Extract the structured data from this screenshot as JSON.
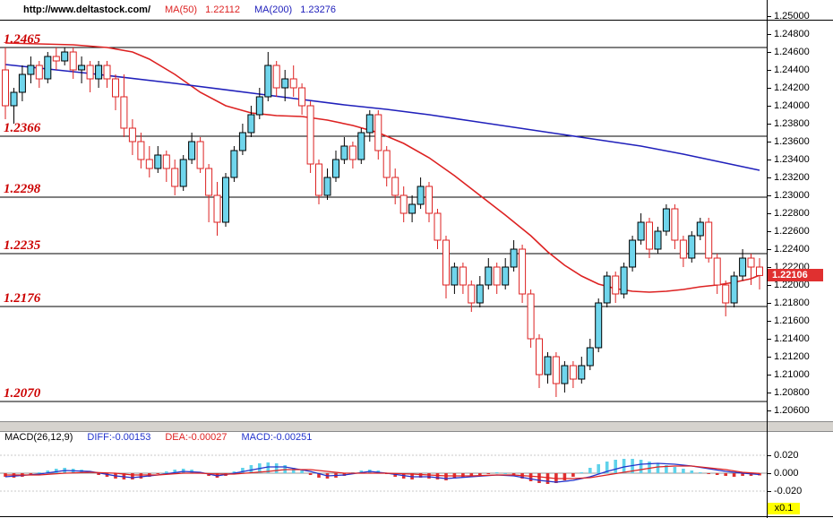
{
  "header": {
    "url": "http://www.deltastock.com/",
    "ma50_label": "MA(50)",
    "ma50_value": "1.22112",
    "ma200_label": "MA(200)",
    "ma200_value": "1.23276"
  },
  "macd_header": {
    "label": "MACD(26,12,9)",
    "diff": "DIFF:-0.00153",
    "dea": "DEA:-0.00027",
    "macd": "MACD:-0.00251",
    "scale_badge": "x0.1"
  },
  "price_badge": "1.22106",
  "colors": {
    "up_candle": "#6fd5ec",
    "down_candle": "#dd2222",
    "ma50": "#dd2222",
    "ma200": "#2020bb",
    "level_label": "#cc0000",
    "level_line": "#000000",
    "diff_line": "#2233cc",
    "dea_line": "#dd2222",
    "hist_pos": "#5fd2ea",
    "hist_neg": "#e03030",
    "price_badge_bg": "#e03030",
    "scale_badge_bg": "#ffff00"
  },
  "chart_data": [
    {
      "type": "candlestick",
      "title": "",
      "ylim": [
        1.2048,
        1.2496
      ],
      "y_axis": {
        "top": 1.25,
        "step": 0.002,
        "count": 23,
        "decimals": 5
      },
      "last_price": 1.22106,
      "levels": [
        {
          "label": "1.2465",
          "price": 1.2465
        },
        {
          "label": "1.2366",
          "price": 1.2366
        },
        {
          "label": "1.2298",
          "price": 1.2298
        },
        {
          "label": "1.2235",
          "price": 1.2235
        },
        {
          "label": "1.2176",
          "price": 1.2176
        },
        {
          "label": "1.2070",
          "price": 1.207
        }
      ],
      "overlays": [
        {
          "id": "ma50",
          "name": "MA(50)",
          "color": "#dd2222",
          "points": [
            [
              0,
              1.247
            ],
            [
              8,
              1.2468
            ],
            [
              12,
              1.2465
            ],
            [
              15,
              1.246
            ],
            [
              17,
              1.2452
            ],
            [
              20,
              1.2435
            ],
            [
              23,
              1.2415
            ],
            [
              26,
              1.24
            ],
            [
              29,
              1.2392
            ],
            [
              32,
              1.2389
            ],
            [
              35,
              1.2388
            ],
            [
              38,
              1.2384
            ],
            [
              41,
              1.2378
            ],
            [
              44,
              1.237
            ],
            [
              47,
              1.2358
            ],
            [
              50,
              1.2342
            ],
            [
              53,
              1.2322
            ],
            [
              56,
              1.23
            ],
            [
              59,
              1.2278
            ],
            [
              62,
              1.2255
            ],
            [
              64,
              1.2237
            ],
            [
              66,
              1.2222
            ],
            [
              68,
              1.221
            ],
            [
              70,
              1.2201
            ],
            [
              72,
              1.2196
            ],
            [
              74,
              1.2193
            ],
            [
              76,
              1.2192
            ],
            [
              78,
              1.2193
            ],
            [
              80,
              1.2195
            ],
            [
              82,
              1.2198
            ],
            [
              84,
              1.22
            ],
            [
              86,
              1.2203
            ],
            [
              88,
              1.2207
            ],
            [
              89,
              1.2211
            ]
          ]
        },
        {
          "id": "ma200",
          "name": "MA(200)",
          "color": "#2020bb",
          "points": [
            [
              0,
              1.2446
            ],
            [
              10,
              1.2436
            ],
            [
              20,
              1.2425
            ],
            [
              30,
              1.2413
            ],
            [
              40,
              1.2401
            ],
            [
              45,
              1.2396
            ],
            [
              50,
              1.239
            ],
            [
              55,
              1.2383
            ],
            [
              60,
              1.2376
            ],
            [
              65,
              1.2369
            ],
            [
              70,
              1.2362
            ],
            [
              75,
              1.2355
            ],
            [
              80,
              1.2346
            ],
            [
              85,
              1.2336
            ],
            [
              89,
              1.2328
            ]
          ]
        }
      ],
      "candles": [
        [
          1.244,
          1.2465,
          1.2385,
          1.24
        ],
        [
          1.24,
          1.242,
          1.238,
          1.2415
        ],
        [
          1.2415,
          1.2445,
          1.2405,
          1.2435
        ],
        [
          1.2435,
          1.2455,
          1.2425,
          1.2445
        ],
        [
          1.2445,
          1.245,
          1.242,
          1.243
        ],
        [
          1.243,
          1.246,
          1.2425,
          1.2455
        ],
        [
          1.2455,
          1.2465,
          1.244,
          1.245
        ],
        [
          1.245,
          1.2465,
          1.2445,
          1.246
        ],
        [
          1.246,
          1.2465,
          1.243,
          1.244
        ],
        [
          1.244,
          1.2455,
          1.2425,
          1.2445
        ],
        [
          1.2445,
          1.245,
          1.2415,
          1.243
        ],
        [
          1.243,
          1.245,
          1.242,
          1.2445
        ],
        [
          1.2445,
          1.245,
          1.242,
          1.243
        ],
        [
          1.243,
          1.2435,
          1.2395,
          1.241
        ],
        [
          1.241,
          1.2435,
          1.2365,
          1.2375
        ],
        [
          1.2375,
          1.2385,
          1.2345,
          1.236
        ],
        [
          1.236,
          1.237,
          1.233,
          1.234
        ],
        [
          1.234,
          1.2355,
          1.232,
          1.233
        ],
        [
          1.233,
          1.2355,
          1.2325,
          1.2345
        ],
        [
          1.2345,
          1.235,
          1.2315,
          1.233
        ],
        [
          1.233,
          1.234,
          1.23,
          1.231
        ],
        [
          1.231,
          1.2345,
          1.2305,
          1.234
        ],
        [
          1.234,
          1.237,
          1.2335,
          1.236
        ],
        [
          1.236,
          1.2365,
          1.2325,
          1.233
        ],
        [
          1.233,
          1.2335,
          1.227,
          1.23
        ],
        [
          1.23,
          1.2315,
          1.2255,
          1.227
        ],
        [
          1.227,
          1.2325,
          1.2265,
          1.232
        ],
        [
          1.232,
          1.2355,
          1.2315,
          1.235
        ],
        [
          1.235,
          1.238,
          1.2345,
          1.237
        ],
        [
          1.237,
          1.24,
          1.2365,
          1.239
        ],
        [
          1.239,
          1.242,
          1.2385,
          1.241
        ],
        [
          1.241,
          1.246,
          1.2405,
          1.2445
        ],
        [
          1.2445,
          1.245,
          1.241,
          1.242
        ],
        [
          1.242,
          1.244,
          1.2405,
          1.243
        ],
        [
          1.243,
          1.2445,
          1.241,
          1.242
        ],
        [
          1.242,
          1.2425,
          1.239,
          1.24
        ],
        [
          1.24,
          1.2405,
          1.2325,
          1.2335
        ],
        [
          1.2335,
          1.234,
          1.229,
          1.23
        ],
        [
          1.23,
          1.233,
          1.2295,
          1.232
        ],
        [
          1.232,
          1.235,
          1.2315,
          1.234
        ],
        [
          1.234,
          1.2365,
          1.2335,
          1.2355
        ],
        [
          1.2355,
          1.236,
          1.233,
          1.234
        ],
        [
          1.234,
          1.2375,
          1.2335,
          1.237
        ],
        [
          1.237,
          1.2395,
          1.236,
          1.239
        ],
        [
          1.239,
          1.2395,
          1.234,
          1.235
        ],
        [
          1.235,
          1.2355,
          1.231,
          1.232
        ],
        [
          1.232,
          1.233,
          1.229,
          1.23
        ],
        [
          1.23,
          1.231,
          1.227,
          1.228
        ],
        [
          1.228,
          1.23,
          1.227,
          1.229
        ],
        [
          1.229,
          1.232,
          1.2285,
          1.231
        ],
        [
          1.231,
          1.2315,
          1.227,
          1.228
        ],
        [
          1.228,
          1.2285,
          1.224,
          1.225
        ],
        [
          1.225,
          1.2255,
          1.2185,
          1.22
        ],
        [
          1.22,
          1.2225,
          1.219,
          1.222
        ],
        [
          1.222,
          1.2225,
          1.219,
          1.22
        ],
        [
          1.22,
          1.2205,
          1.217,
          1.218
        ],
        [
          1.218,
          1.221,
          1.2175,
          1.22
        ],
        [
          1.22,
          1.223,
          1.2195,
          1.222
        ],
        [
          1.222,
          1.2225,
          1.219,
          1.22
        ],
        [
          1.22,
          1.223,
          1.2195,
          1.222
        ],
        [
          1.222,
          1.225,
          1.2215,
          1.224
        ],
        [
          1.224,
          1.2245,
          1.218,
          1.219
        ],
        [
          1.219,
          1.2195,
          1.213,
          1.214
        ],
        [
          1.214,
          1.2145,
          1.2085,
          1.21
        ],
        [
          1.21,
          1.2125,
          1.209,
          1.212
        ],
        [
          1.212,
          1.2125,
          1.2075,
          1.209
        ],
        [
          1.209,
          1.2115,
          1.208,
          1.211
        ],
        [
          1.211,
          1.2115,
          1.2085,
          1.2095
        ],
        [
          1.2095,
          1.212,
          1.209,
          1.211
        ],
        [
          1.211,
          1.214,
          1.2105,
          1.213
        ],
        [
          1.213,
          1.2185,
          1.2125,
          1.218
        ],
        [
          1.218,
          1.2215,
          1.2175,
          1.221
        ],
        [
          1.221,
          1.2215,
          1.218,
          1.219
        ],
        [
          1.219,
          1.2225,
          1.2185,
          1.222
        ],
        [
          1.222,
          1.2255,
          1.2215,
          1.225
        ],
        [
          1.225,
          1.228,
          1.2245,
          1.227
        ],
        [
          1.227,
          1.2275,
          1.223,
          1.224
        ],
        [
          1.224,
          1.2265,
          1.2235,
          1.226
        ],
        [
          1.226,
          1.229,
          1.2255,
          1.2285
        ],
        [
          1.2285,
          1.229,
          1.224,
          1.225
        ],
        [
          1.225,
          1.2255,
          1.222,
          1.223
        ],
        [
          1.223,
          1.226,
          1.2225,
          1.2255
        ],
        [
          1.2255,
          1.2275,
          1.225,
          1.227
        ],
        [
          1.227,
          1.2275,
          1.2225,
          1.223
        ],
        [
          1.223,
          1.2235,
          1.219,
          1.22
        ],
        [
          1.22,
          1.2205,
          1.2165,
          1.218
        ],
        [
          1.218,
          1.2215,
          1.2175,
          1.221
        ],
        [
          1.221,
          1.224,
          1.2205,
          1.223
        ],
        [
          1.223,
          1.2235,
          1.22,
          1.222
        ],
        [
          1.222,
          1.223,
          1.2195,
          1.22106
        ]
      ]
    },
    {
      "type": "macd",
      "ylim": [
        -0.044,
        0.034
      ],
      "y_ticks": [
        0.02,
        0.0,
        -0.02
      ],
      "histogram": [
        -0.004,
        -0.005,
        -0.004,
        -0.002,
        0.001,
        0.003,
        0.005,
        0.006,
        0.005,
        0.004,
        0.002,
        -0.002,
        -0.004,
        -0.006,
        -0.007,
        -0.007,
        -0.006,
        -0.004,
        -0.001,
        0.002,
        0.004,
        0.005,
        0.004,
        0.001,
        -0.003,
        -0.005,
        -0.003,
        0.002,
        0.006,
        0.009,
        0.011,
        0.012,
        0.011,
        0.009,
        0.006,
        0.003,
        -0.002,
        -0.005,
        -0.006,
        -0.005,
        -0.003,
        0.001,
        0.003,
        0.004,
        0.003,
        -0.001,
        -0.004,
        -0.006,
        -0.007,
        -0.005,
        -0.006,
        -0.007,
        -0.008,
        -0.006,
        -0.005,
        -0.003,
        -0.002,
        -0.001,
        0.001,
        0.0,
        -0.002,
        -0.006,
        -0.009,
        -0.011,
        -0.012,
        -0.011,
        -0.008,
        -0.004,
        0.001,
        0.006,
        0.01,
        0.013,
        0.015,
        0.016,
        0.016,
        0.015,
        0.013,
        0.011,
        0.009,
        0.007,
        0.005,
        0.003,
        0.001,
        -0.001,
        -0.002,
        -0.003,
        -0.004,
        -0.003,
        -0.003,
        -0.0025
      ],
      "diff_points": [
        [
          0,
          -0.004
        ],
        [
          4,
          -0.001
        ],
        [
          7,
          0.003
        ],
        [
          10,
          0.002
        ],
        [
          13,
          -0.003
        ],
        [
          15,
          -0.005
        ],
        [
          18,
          -0.002
        ],
        [
          21,
          0.002
        ],
        [
          23,
          0.001
        ],
        [
          25,
          -0.003
        ],
        [
          27,
          0.0
        ],
        [
          31,
          0.007
        ],
        [
          33,
          0.007
        ],
        [
          36,
          0.002
        ],
        [
          38,
          -0.003
        ],
        [
          40,
          -0.002
        ],
        [
          43,
          0.002
        ],
        [
          45,
          0.0
        ],
        [
          48,
          -0.004
        ],
        [
          50,
          -0.004
        ],
        [
          52,
          -0.006
        ],
        [
          55,
          -0.004
        ],
        [
          58,
          -0.002
        ],
        [
          60,
          -0.003
        ],
        [
          63,
          -0.008
        ],
        [
          65,
          -0.01
        ],
        [
          67,
          -0.008
        ],
        [
          69,
          -0.004
        ],
        [
          71,
          0.002
        ],
        [
          73,
          0.007
        ],
        [
          75,
          0.01
        ],
        [
          77,
          0.011
        ],
        [
          79,
          0.01
        ],
        [
          81,
          0.008
        ],
        [
          83,
          0.005
        ],
        [
          85,
          0.002
        ],
        [
          87,
          0.0
        ],
        [
          89,
          -0.0015
        ]
      ],
      "dea_points": [
        [
          0,
          -0.002
        ],
        [
          4,
          -0.002
        ],
        [
          7,
          0.0
        ],
        [
          10,
          0.001
        ],
        [
          13,
          0.0
        ],
        [
          15,
          -0.002
        ],
        [
          18,
          -0.002
        ],
        [
          21,
          0.0
        ],
        [
          23,
          0.0
        ],
        [
          25,
          -0.001
        ],
        [
          27,
          -0.001
        ],
        [
          31,
          0.002
        ],
        [
          33,
          0.004
        ],
        [
          36,
          0.004
        ],
        [
          38,
          0.002
        ],
        [
          40,
          0.0
        ],
        [
          43,
          0.0
        ],
        [
          45,
          0.0
        ],
        [
          48,
          -0.001
        ],
        [
          50,
          -0.002
        ],
        [
          52,
          -0.003
        ],
        [
          55,
          -0.003
        ],
        [
          58,
          -0.002
        ],
        [
          60,
          -0.002
        ],
        [
          63,
          -0.004
        ],
        [
          65,
          -0.006
        ],
        [
          67,
          -0.006
        ],
        [
          69,
          -0.005
        ],
        [
          71,
          -0.002
        ],
        [
          73,
          0.001
        ],
        [
          75,
          0.004
        ],
        [
          77,
          0.007
        ],
        [
          79,
          0.008
        ],
        [
          81,
          0.008
        ],
        [
          83,
          0.006
        ],
        [
          85,
          0.004
        ],
        [
          87,
          0.001
        ],
        [
          89,
          -0.0003
        ]
      ]
    }
  ]
}
